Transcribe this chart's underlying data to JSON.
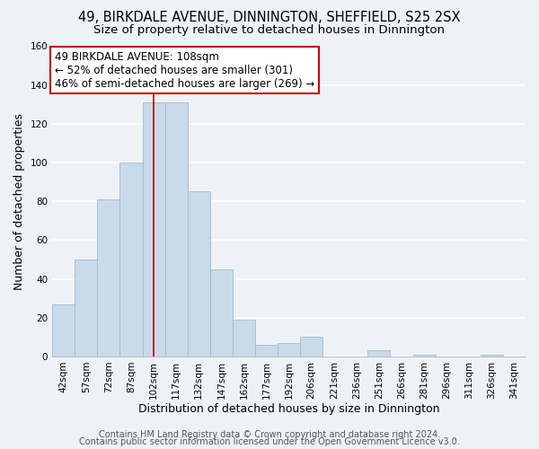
{
  "title": "49, BIRKDALE AVENUE, DINNINGTON, SHEFFIELD, S25 2SX",
  "subtitle": "Size of property relative to detached houses in Dinnington",
  "xlabel": "Distribution of detached houses by size in Dinnington",
  "ylabel": "Number of detached properties",
  "bar_labels": [
    "42sqm",
    "57sqm",
    "72sqm",
    "87sqm",
    "102sqm",
    "117sqm",
    "132sqm",
    "147sqm",
    "162sqm",
    "177sqm",
    "192sqm",
    "206sqm",
    "221sqm",
    "236sqm",
    "251sqm",
    "266sqm",
    "281sqm",
    "296sqm",
    "311sqm",
    "326sqm",
    "341sqm"
  ],
  "bar_values": [
    27,
    50,
    81,
    100,
    131,
    131,
    85,
    45,
    19,
    6,
    7,
    10,
    0,
    0,
    3,
    0,
    1,
    0,
    0,
    1,
    0
  ],
  "bar_color": "#c9daea",
  "bar_edge_color": "#9dbdd4",
  "highlight_index": 4,
  "highlight_line_color": "#cc0000",
  "ylim": [
    0,
    160
  ],
  "yticks": [
    0,
    20,
    40,
    60,
    80,
    100,
    120,
    140,
    160
  ],
  "annotation_title": "49 BIRKDALE AVENUE: 108sqm",
  "annotation_line1": "← 52% of detached houses are smaller (301)",
  "annotation_line2": "46% of semi-detached houses are larger (269) →",
  "annotation_box_color": "#ffffff",
  "annotation_box_edge": "#cc0000",
  "footer_line1": "Contains HM Land Registry data © Crown copyright and database right 2024.",
  "footer_line2": "Contains public sector information licensed under the Open Government Licence v3.0.",
  "background_color": "#eef2f7",
  "plot_background": "#eef2f7",
  "grid_color": "#ffffff",
  "title_fontsize": 10.5,
  "subtitle_fontsize": 9.5,
  "axis_label_fontsize": 9,
  "tick_fontsize": 7.5,
  "footer_fontsize": 7,
  "annotation_fontsize": 8.5
}
